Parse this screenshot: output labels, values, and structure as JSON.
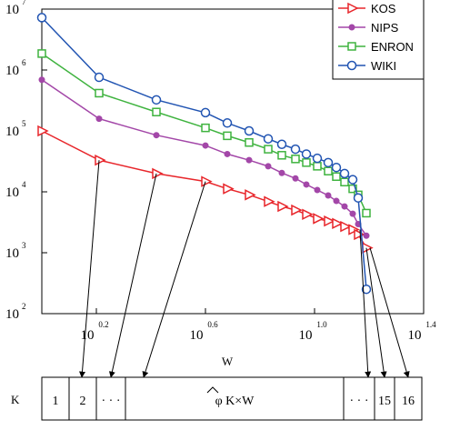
{
  "chart_data": {
    "type": "line",
    "x_scale": "log",
    "y_scale": "log",
    "xlim_log10": [
      0,
      1.4
    ],
    "ylim_log10": [
      2,
      7
    ],
    "xticks": [
      {
        "base": "10",
        "exp": "0.2",
        "log": 0.2
      },
      {
        "base": "10",
        "exp": "0.6",
        "log": 0.6
      },
      {
        "base": "10",
        "exp": "1.0",
        "log": 1.0
      },
      {
        "base": "10",
        "exp": "1.4",
        "log": 1.4
      }
    ],
    "yticks": [
      {
        "base": "10",
        "exp": "2",
        "log": 2
      },
      {
        "base": "10",
        "exp": "3",
        "log": 3
      },
      {
        "base": "10",
        "exp": "4",
        "log": 4
      },
      {
        "base": "10",
        "exp": "5",
        "log": 5
      },
      {
        "base": "10",
        "exp": "6",
        "log": 6
      },
      {
        "base": "10",
        "exp": "7",
        "log": 7
      }
    ],
    "legend_position": "top-right",
    "series": [
      {
        "name": "KOS",
        "color": "#e8262b",
        "marker": "triangle-right",
        "points": [
          [
            0,
            5.0
          ],
          [
            0.21,
            4.52
          ],
          [
            0.42,
            4.3
          ],
          [
            0.6,
            4.17
          ],
          [
            0.68,
            4.05
          ],
          [
            0.76,
            3.95
          ],
          [
            0.83,
            3.84
          ],
          [
            0.88,
            3.76
          ],
          [
            0.93,
            3.7
          ],
          [
            0.97,
            3.63
          ],
          [
            1.01,
            3.56
          ],
          [
            1.05,
            3.52
          ],
          [
            1.08,
            3.48
          ],
          [
            1.11,
            3.43
          ],
          [
            1.14,
            3.38
          ],
          [
            1.16,
            3.3
          ],
          [
            1.19,
            3.08
          ]
        ]
      },
      {
        "name": "NIPS",
        "color": "#a347a8",
        "marker": "dot",
        "points": [
          [
            0,
            5.84
          ],
          [
            0.21,
            5.2
          ],
          [
            0.42,
            4.93
          ],
          [
            0.6,
            4.76
          ],
          [
            0.68,
            4.62
          ],
          [
            0.76,
            4.52
          ],
          [
            0.83,
            4.42
          ],
          [
            0.88,
            4.31
          ],
          [
            0.93,
            4.22
          ],
          [
            0.97,
            4.12
          ],
          [
            1.01,
            4.03
          ],
          [
            1.05,
            3.94
          ],
          [
            1.08,
            3.85
          ],
          [
            1.11,
            3.76
          ],
          [
            1.14,
            3.64
          ],
          [
            1.16,
            3.47
          ],
          [
            1.19,
            3.28
          ]
        ]
      },
      {
        "name": "ENRON",
        "color": "#3fb33f",
        "marker": "square",
        "points": [
          [
            0,
            6.27
          ],
          [
            0.21,
            5.62
          ],
          [
            0.42,
            5.31
          ],
          [
            0.6,
            5.05
          ],
          [
            0.68,
            4.92
          ],
          [
            0.76,
            4.81
          ],
          [
            0.83,
            4.7
          ],
          [
            0.88,
            4.6
          ],
          [
            0.93,
            4.54
          ],
          [
            0.97,
            4.48
          ],
          [
            1.01,
            4.42
          ],
          [
            1.05,
            4.34
          ],
          [
            1.08,
            4.25
          ],
          [
            1.11,
            4.16
          ],
          [
            1.14,
            4.05
          ],
          [
            1.16,
            3.95
          ],
          [
            1.19,
            3.65
          ]
        ]
      },
      {
        "name": "WIKI",
        "color": "#2154b2",
        "marker": "circle",
        "points": [
          [
            0,
            6.86
          ],
          [
            0.21,
            5.88
          ],
          [
            0.42,
            5.51
          ],
          [
            0.6,
            5.3
          ],
          [
            0.68,
            5.13
          ],
          [
            0.76,
            5.0
          ],
          [
            0.83,
            4.87
          ],
          [
            0.88,
            4.78
          ],
          [
            0.93,
            4.7
          ],
          [
            0.97,
            4.62
          ],
          [
            1.01,
            4.55
          ],
          [
            1.05,
            4.48
          ],
          [
            1.08,
            4.4
          ],
          [
            1.11,
            4.3
          ],
          [
            1.14,
            4.2
          ],
          [
            1.16,
            3.9
          ],
          [
            1.19,
            2.4
          ]
        ]
      }
    ]
  },
  "diagram": {
    "w_label": "W",
    "k_label": "K",
    "cells": [
      "1",
      "2",
      "· · ·",
      "φ K×W",
      "· · ·",
      "15",
      "16"
    ]
  }
}
